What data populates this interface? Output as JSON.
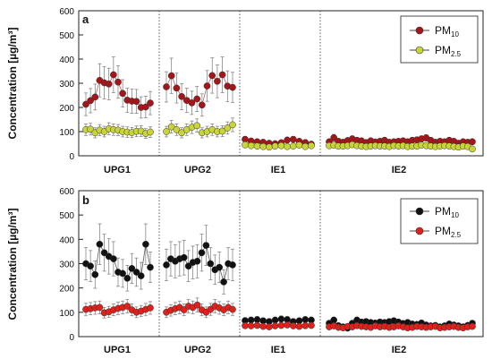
{
  "figure": {
    "group_labels": [
      "UPG1",
      "UPG2",
      "IE1",
      "IE2"
    ]
  },
  "chart_data": [
    {
      "type": "scatter",
      "panel_label": "a",
      "ylabel": "Concentration [µg/m³]",
      "ylim": [
        0,
        600
      ],
      "yticks": [
        0,
        100,
        200,
        300,
        400,
        500,
        600
      ],
      "groups": [
        "UPG1",
        "UPG2",
        "IE1",
        "IE2"
      ],
      "legend": {
        "position": "top-right",
        "entries": [
          "PM10",
          "PM2.5"
        ]
      },
      "grid": false,
      "series": [
        {
          "name": "PM10",
          "color": "#a4161a",
          "error_bars": true,
          "groups": [
            {
              "group": "UPG1",
              "values": [
                213,
                228,
                243,
                312,
                302,
                297,
                335,
                305,
                258,
                230,
                226,
                225,
                200,
                202,
                218
              ]
            },
            {
              "group": "UPG2",
              "values": [
                285,
                331,
                280,
                245,
                229,
                219,
                235,
                210,
                289,
                332,
                308,
                335,
                288,
                283
              ]
            },
            {
              "group": "IE1",
              "values": [
                68,
                61,
                58,
                56,
                52,
                50,
                54,
                65,
                68,
                60,
                55,
                48
              ]
            },
            {
              "group": "IE2",
              "values": [
                58,
                75,
                60,
                56,
                63,
                70,
                64,
                62,
                55,
                62,
                57,
                60,
                64,
                56,
                58,
                60,
                62,
                58,
                64,
                66,
                70,
                74,
                64,
                56,
                60,
                58,
                64,
                60,
                52,
                58,
                56,
                58
              ]
            }
          ]
        },
        {
          "name": "PM2.5",
          "color": "#c8d43a",
          "error_bars": true,
          "groups": [
            {
              "group": "UPG1",
              "values": [
                108,
                110,
                95,
                106,
                100,
                112,
                108,
                106,
                100,
                98,
                96,
                101,
                102,
                92,
                98
              ]
            },
            {
              "group": "UPG2",
              "values": [
                100,
                120,
                108,
                95,
                108,
                118,
                125,
                95,
                100,
                108,
                100,
                102,
                115,
                128
              ]
            },
            {
              "group": "IE1",
              "values": [
                45,
                42,
                40,
                38,
                36,
                40,
                42,
                38,
                40,
                44,
                38,
                42
              ]
            },
            {
              "group": "IE2",
              "values": [
                42,
                44,
                40,
                40,
                42,
                46,
                42,
                40,
                38,
                40,
                42,
                40,
                40,
                38,
                42,
                40,
                42,
                38,
                40,
                40,
                44,
                42,
                40,
                38,
                40,
                42,
                40,
                38,
                36,
                40,
                38,
                28
              ]
            }
          ]
        }
      ]
    },
    {
      "type": "scatter",
      "panel_label": "b",
      "ylabel": "Concentration [µg/m³]",
      "ylim": [
        0,
        600
      ],
      "yticks": [
        0,
        100,
        200,
        300,
        400,
        500,
        600
      ],
      "groups": [
        "UPG1",
        "UPG2",
        "IE1",
        "IE2"
      ],
      "legend": {
        "position": "top-right",
        "entries": [
          "PM10",
          "PM2.5"
        ]
      },
      "grid": false,
      "series": [
        {
          "name": "PM10",
          "color": "#111111",
          "error_bars": true,
          "groups": [
            {
              "group": "UPG1",
              "values": [
                300,
                290,
                255,
                380,
                345,
                330,
                320,
                265,
                260,
                240,
                280,
                265,
                250,
                380,
                285
              ]
            },
            {
              "group": "UPG2",
              "values": [
                295,
                320,
                310,
                320,
                325,
                290,
                305,
                310,
                345,
                375,
                300,
                275,
                285,
                225,
                300,
                295
              ]
            },
            {
              "group": "IE1",
              "values": [
                66,
                68,
                70,
                65,
                62,
                68,
                72,
                70,
                62,
                65,
                70,
                68
              ]
            },
            {
              "group": "IE2",
              "values": [
                55,
                68,
                45,
                40,
                35,
                55,
                68,
                60,
                62,
                58,
                56,
                60,
                58,
                62,
                65,
                60,
                54,
                58,
                52,
                50,
                56,
                48,
                44,
                46,
                40,
                44,
                52,
                48,
                44,
                40,
                46,
                55
              ]
            }
          ]
        },
        {
          "name": "PM2.5",
          "color": "#e0201a",
          "error_bars": true,
          "groups": [
            {
              "group": "UPG1",
              "values": [
                112,
                115,
                118,
                120,
                98,
                102,
                110,
                116,
                120,
                125,
                110,
                100,
                105,
                112,
                118
              ]
            },
            {
              "group": "UPG2",
              "values": [
                100,
                108,
                115,
                120,
                110,
                125,
                120,
                130,
                110,
                100,
                112,
                125,
                118,
                110,
                120,
                112
              ]
            },
            {
              "group": "IE1",
              "values": [
                45,
                44,
                46,
                42,
                40,
                44,
                46,
                48,
                44,
                42,
                45,
                46
              ]
            },
            {
              "group": "IE2",
              "values": [
                40,
                44,
                38,
                36,
                42,
                40,
                45,
                42,
                40,
                38,
                44,
                40,
                42,
                38,
                40,
                44,
                40,
                36,
                38,
                42,
                40,
                38,
                40,
                42,
                36,
                38,
                40,
                42,
                38,
                36,
                40,
                42
              ]
            }
          ]
        }
      ]
    }
  ]
}
